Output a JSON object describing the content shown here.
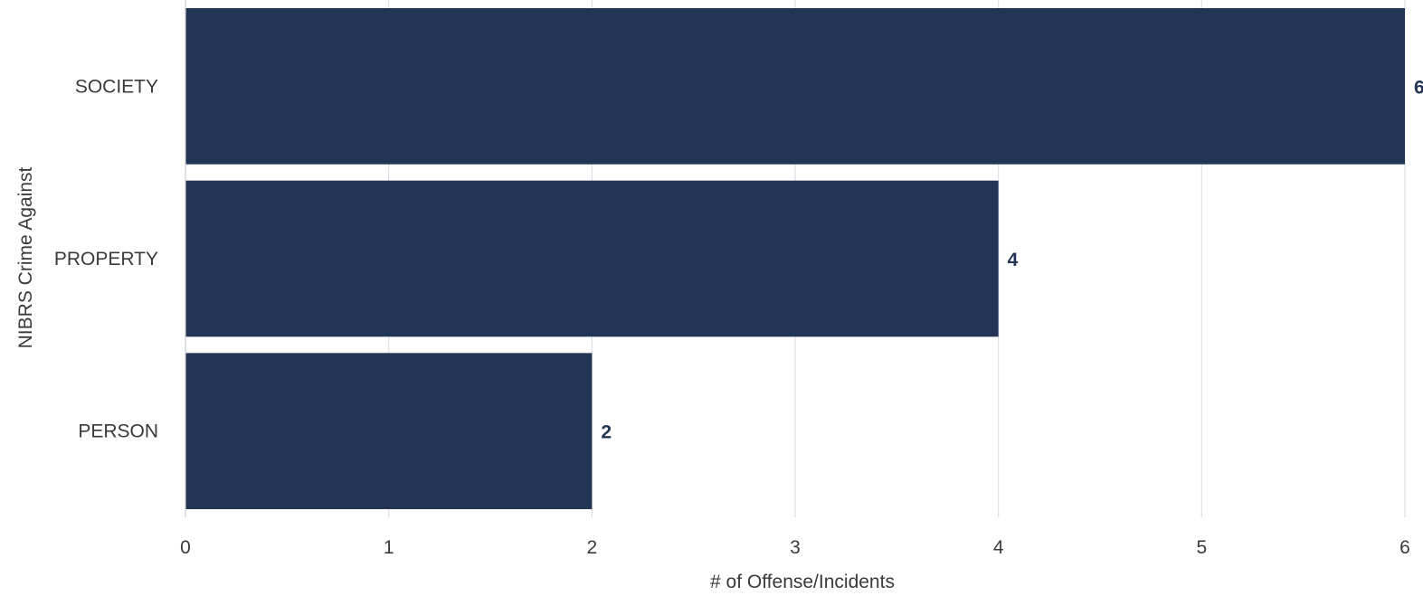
{
  "chart_data": {
    "type": "bar",
    "orientation": "horizontal",
    "categories": [
      "SOCIETY",
      "PROPERTY",
      "PERSON"
    ],
    "values": [
      6,
      4,
      2
    ],
    "data_labels": [
      "6",
      "4",
      "2"
    ],
    "xlabel": "# of Offense/Incidents",
    "ylabel": "NIBRS Crime Against",
    "xlim": [
      0,
      6
    ],
    "xticks": [
      "0",
      "1",
      "2",
      "3",
      "4",
      "5",
      "6"
    ],
    "grid": true,
    "legend": "none",
    "colors": {
      "bar": "#233555",
      "grid": "#dcdfe4",
      "axis": "#c8ccd2",
      "text": "#3a3a3a"
    }
  }
}
